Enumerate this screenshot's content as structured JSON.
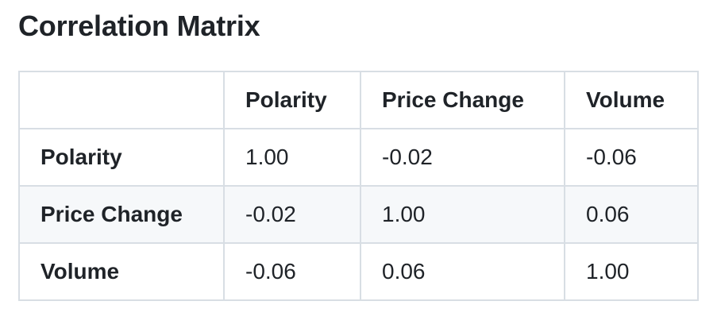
{
  "page": {
    "title": "Correlation Matrix"
  },
  "matrix": {
    "columns": [
      "Polarity",
      "Price Change",
      "Volume"
    ],
    "rows": [
      {
        "label": "Polarity",
        "values": [
          "1.00",
          "-0.02",
          "-0.06"
        ]
      },
      {
        "label": "Price Change",
        "values": [
          "-0.02",
          "1.00",
          "0.06"
        ]
      },
      {
        "label": "Volume",
        "values": [
          "-0.06",
          "0.06",
          "1.00"
        ]
      }
    ]
  },
  "colors": {
    "text": "#1f2328",
    "border": "#d8dee4",
    "row_stripe": "#f6f8fa",
    "background": "#ffffff"
  }
}
